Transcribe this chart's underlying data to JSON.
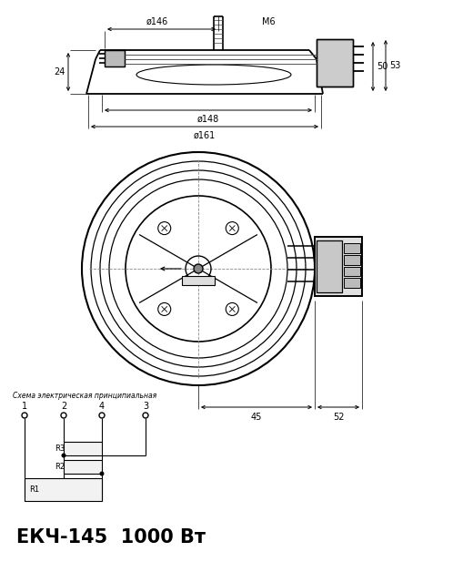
{
  "bg_color": "#ffffff",
  "line_color": "#000000",
  "gray_color": "#666666",
  "title": "ЕКЧ-145  1000 Вт",
  "title_fontsize": 15,
  "schema_title": "Схема электрическая принципиальная",
  "dim_d146": "ø146",
  "dim_m6": "M6",
  "dim_d148": "ø148",
  "dim_d161": "ø161",
  "dim_24": "24",
  "dim_50": "50",
  "dim_53": "53",
  "dim_45": "45",
  "dim_52": "52",
  "resistors": [
    "R1",
    "R2",
    "R3"
  ],
  "terminals": [
    "1",
    "2",
    "4",
    "3"
  ]
}
